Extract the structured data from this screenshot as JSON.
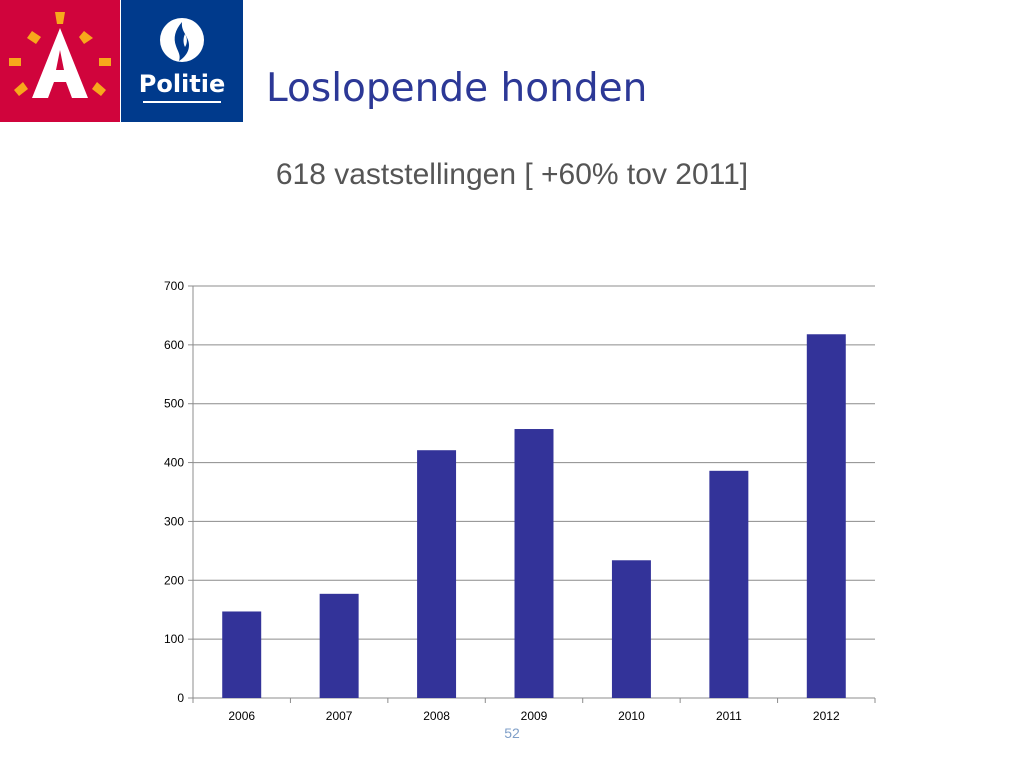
{
  "slide": {
    "title": "Loslopende honden",
    "subtitle": "618 vaststellingen [ +60% tov 2011]",
    "page_number": "52"
  },
  "logos": {
    "antwerpen": {
      "icon": "antwerpen-a-sun-logo",
      "color": "#d0043c"
    },
    "politie": {
      "icon": "politie-flame-logo",
      "text": "Politie",
      "color": "#003a8c"
    }
  },
  "chart_data": {
    "type": "bar",
    "categories": [
      "2006",
      "2007",
      "2008",
      "2009",
      "2010",
      "2011",
      "2012"
    ],
    "values": [
      147,
      177,
      421,
      457,
      234,
      386,
      618
    ],
    "ylim": [
      0,
      700
    ],
    "yticks": [
      0,
      100,
      200,
      300,
      400,
      500,
      600,
      700
    ],
    "grid": true,
    "legend": "none",
    "title": "",
    "xlabel": "",
    "ylabel": "",
    "bar_color": "#333399"
  }
}
